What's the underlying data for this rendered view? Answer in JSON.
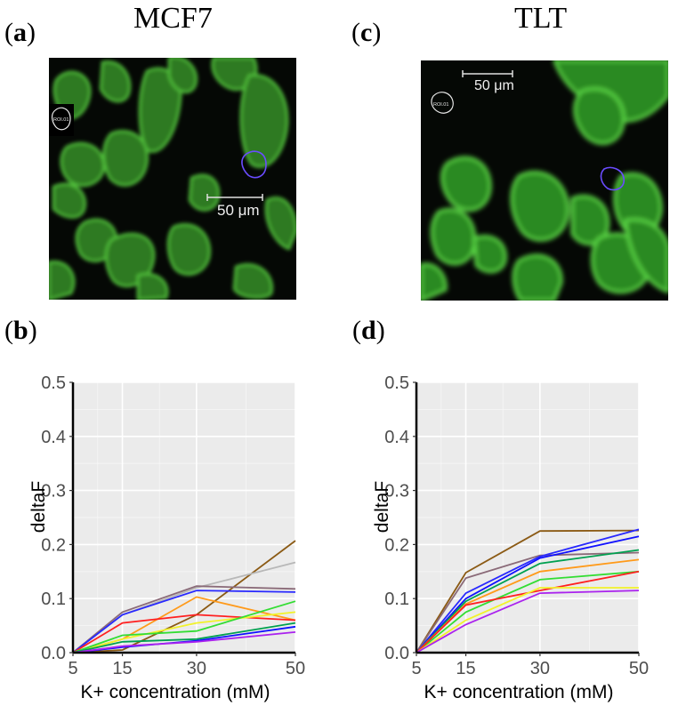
{
  "panels": {
    "a": {
      "label": "a",
      "title": "MCF7",
      "scale_bar": "50 μm",
      "roi_label": "ROI.01"
    },
    "c": {
      "label": "c",
      "title": "TLT",
      "scale_bar": "50 μm",
      "roi_label": "ROI.01"
    },
    "b": {
      "label": "b"
    },
    "d": {
      "label": "d"
    }
  },
  "chart_data": [
    {
      "panel": "b",
      "type": "line",
      "xlabel": "K+ concentration (mM)",
      "ylabel": "deltaF",
      "x": [
        5,
        15,
        30,
        50
      ],
      "ylim": [
        0,
        0.5
      ],
      "yticks": [
        "0.0",
        "0.1",
        "0.2",
        "0.3",
        "0.4",
        "0.5"
      ],
      "xticks": [
        "5",
        "15",
        "30",
        "50"
      ],
      "grid": true,
      "series": [
        {
          "color": "#8B5A14",
          "values": [
            0,
            0.005,
            0.07,
            0.207
          ]
        },
        {
          "color": "#b8b8b8",
          "values": [
            0,
            0.07,
            0.12,
            0.167
          ]
        },
        {
          "color": "#8a6a78",
          "values": [
            0,
            0.075,
            0.123,
            0.118
          ]
        },
        {
          "color": "#2828ff",
          "values": [
            0,
            0.07,
            0.115,
            0.112
          ]
        },
        {
          "color": "#ff9a1a",
          "values": [
            0,
            0.025,
            0.103,
            0.06
          ]
        },
        {
          "color": "#ff2020",
          "values": [
            0,
            0.055,
            0.07,
            0.06
          ]
        },
        {
          "color": "#f2f22a",
          "values": [
            0,
            0.025,
            0.055,
            0.075
          ]
        },
        {
          "color": "#33dd33",
          "values": [
            0,
            0.032,
            0.04,
            0.095
          ]
        },
        {
          "color": "#00a050",
          "values": [
            0,
            0.02,
            0.025,
            0.055
          ]
        },
        {
          "color": "#1010ff",
          "values": [
            0,
            0.01,
            0.022,
            0.048
          ]
        },
        {
          "color": "#aa22ee",
          "values": [
            0,
            0.012,
            0.02,
            0.038
          ]
        }
      ]
    },
    {
      "panel": "d",
      "type": "line",
      "xlabel": "K+ concentration (mM)",
      "ylabel": "deltaF",
      "x": [
        5,
        15,
        30,
        50
      ],
      "ylim": [
        0,
        0.5
      ],
      "yticks": [
        "0.0",
        "0.1",
        "0.2",
        "0.3",
        "0.4",
        "0.5"
      ],
      "xticks": [
        "5",
        "15",
        "30",
        "50"
      ],
      "grid": true,
      "series": [
        {
          "color": "#8B5A14",
          "values": [
            0,
            0.148,
            0.225,
            0.226
          ]
        },
        {
          "color": "#8a6a78",
          "values": [
            0,
            0.138,
            0.18,
            0.185
          ]
        },
        {
          "color": "#2828ff",
          "values": [
            0,
            0.11,
            0.178,
            0.228
          ]
        },
        {
          "color": "#1010ff",
          "values": [
            0,
            0.1,
            0.175,
            0.215
          ]
        },
        {
          "color": "#00a050",
          "values": [
            0,
            0.095,
            0.165,
            0.19
          ]
        },
        {
          "color": "#ff9a1a",
          "values": [
            0,
            0.09,
            0.15,
            0.172
          ]
        },
        {
          "color": "#33dd33",
          "values": [
            0,
            0.075,
            0.135,
            0.15
          ]
        },
        {
          "color": "#ff2020",
          "values": [
            0,
            0.088,
            0.115,
            0.15
          ]
        },
        {
          "color": "#f2f22a",
          "values": [
            0,
            0.06,
            0.12,
            0.12
          ]
        },
        {
          "color": "#aa22ee",
          "values": [
            0,
            0.052,
            0.11,
            0.115
          ]
        }
      ]
    }
  ]
}
